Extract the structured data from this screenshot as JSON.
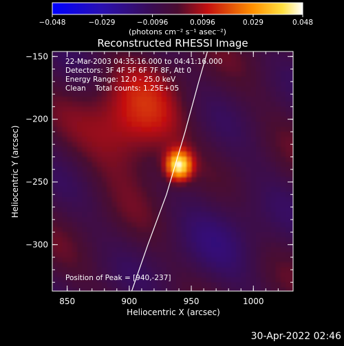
{
  "chart_data": {
    "type": "heatmap",
    "title": "Reconstructed RHESSI Image",
    "xlabel": "Heliocentric X (arcsec)",
    "ylabel": "Heliocentric Y (arcsec)",
    "xlim": [
      838,
      1032
    ],
    "ylim": [
      -337,
      -146
    ],
    "x_ticks": [
      850,
      900,
      950,
      1000
    ],
    "y_ticks": [
      -300,
      -250,
      -200,
      -150
    ],
    "x_tick_labels": [
      "850",
      "900",
      "950",
      "1000"
    ],
    "y_tick_labels": [
      "−300",
      "−250",
      "−200",
      "−150"
    ],
    "colorbar": {
      "min": -0.048,
      "max": 0.048,
      "ticks": [
        -0.048,
        -0.029,
        -0.0096,
        0.0096,
        0.029,
        0.048
      ],
      "tick_labels": [
        "−0.048",
        "−0.029",
        "−0.0096",
        "0.0096",
        "0.029",
        "0.048"
      ],
      "units_label": "(photons cm⁻² s⁻¹ asec⁻²)"
    },
    "annotations": [
      "22-Mar-2003 04:35:16.000 to 04:41:16.000",
      "Detectors: 3F 4F 5F 6F 7F 8F, Att 0",
      "Energy Range: 12.0 - 25.0 keV",
      "Clean    Total counts: 1.25E+05"
    ],
    "peak_label": "Position of Peak = [940,-237]",
    "peak": [
      940,
      -237
    ],
    "peak_value": 0.048,
    "sources": [
      {
        "x": 940,
        "y": -237,
        "sx": 7,
        "sy": 8,
        "amp": 0.048
      },
      {
        "x": 905,
        "y": -205,
        "sx": 26,
        "sy": 28,
        "amp": 0.02
      }
    ],
    "limb_curve": [
      [
        902,
        -337
      ],
      [
        915,
        -300
      ],
      [
        930,
        -260
      ],
      [
        945,
        -210
      ],
      [
        956,
        -170
      ],
      [
        963,
        -146
      ]
    ]
  },
  "footer": {
    "timestamp": "30-Apr-2022 02:46"
  }
}
